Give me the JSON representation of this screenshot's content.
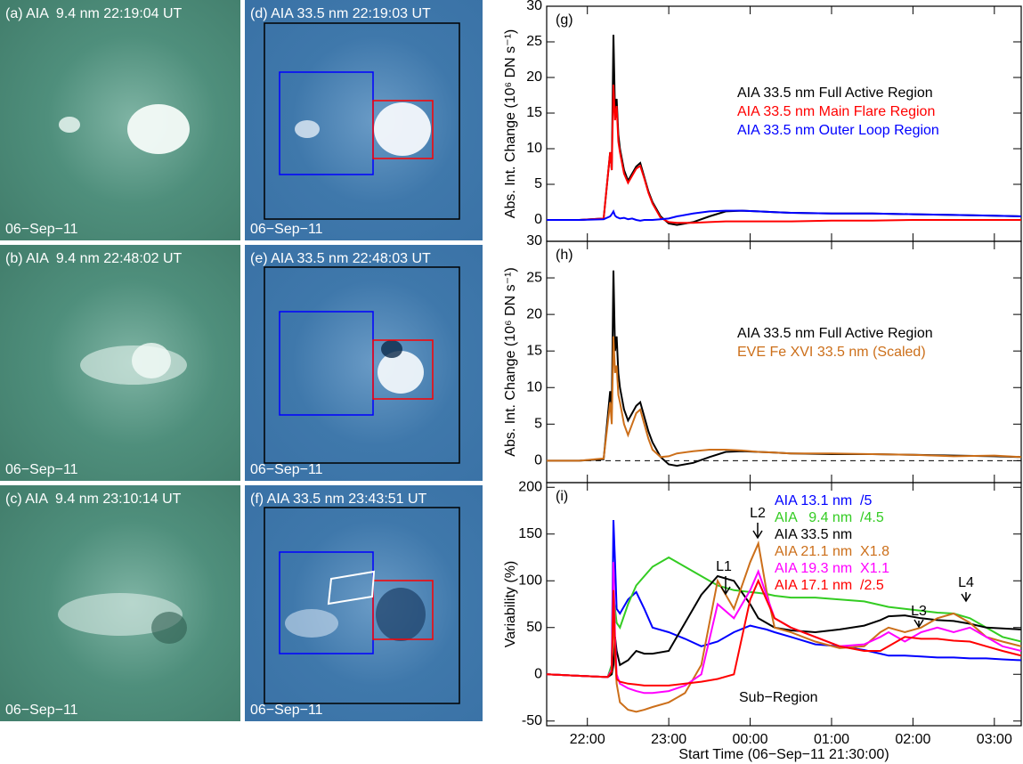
{
  "panels": [
    {
      "label": "(a) AIA  9.4 nm 22:19:04 UT",
      "date": "06−Sep−11"
    },
    {
      "label": "(d) AIA 33.5 nm 22:19:03 UT",
      "date": "06−Sep−11"
    },
    {
      "label": "(b) AIA  9.4 nm 22:48:02 UT",
      "date": "06−Sep−11"
    },
    {
      "label": "(e) AIA 33.5 nm 22:48:03 UT",
      "date": "06−Sep−11"
    },
    {
      "label": "(c) AIA  9.4 nm 23:10:14 UT",
      "date": "06−Sep−11"
    },
    {
      "label": "(f) AIA 33.5 nm 23:43:51 UT",
      "date": "06−Sep−11"
    }
  ],
  "chart_data": [
    {
      "type": "line",
      "panel_label": "(g)",
      "ylabel": "Abs. Int. Change (10⁶ DN s⁻¹)",
      "x": [
        0,
        0.4,
        0.7,
        0.78,
        0.8,
        0.82,
        0.84,
        0.86,
        0.88,
        0.9,
        0.95,
        1.0,
        1.05,
        1.1,
        1.15,
        1.2,
        1.25,
        1.3,
        1.4,
        1.5,
        1.6,
        1.8,
        2.0,
        2.2,
        2.4,
        2.6,
        2.8,
        3.0,
        3.5,
        4.0,
        4.5,
        5.0,
        5.5,
        5.83
      ],
      "xlim": [
        0,
        5.83
      ],
      "xticks": [
        {
          "value": 0.5,
          "label": "22:00"
        },
        {
          "value": 1.5,
          "label": "23:00"
        },
        {
          "value": 2.5,
          "label": "00:00"
        },
        {
          "value": 3.5,
          "label": "01:00"
        },
        {
          "value": 4.5,
          "label": "02:00"
        },
        {
          "value": 5.5,
          "label": "03:00"
        }
      ],
      "ylim": [
        -3,
        30
      ],
      "yticks": [
        0,
        5,
        10,
        15,
        20,
        25,
        30
      ],
      "series": [
        {
          "name": "AIA 33.5 nm Full Active Region",
          "color": "#000000",
          "values": [
            0,
            0,
            0.2,
            9.5,
            7,
            26,
            15,
            17,
            12,
            10,
            7,
            5.5,
            6.5,
            7.5,
            8,
            6,
            4,
            2.5,
            0.5,
            -0.5,
            -0.7,
            -0.3,
            0.5,
            1.2,
            1.3,
            1.2,
            1.1,
            1.0,
            0.9,
            0.9,
            0.8,
            0.7,
            0.6,
            0.5
          ]
        },
        {
          "name": "AIA 33.5 nm Main Flare Region",
          "color": "#ff0000",
          "values": [
            0,
            0,
            0.2,
            9.5,
            7,
            19,
            14,
            16,
            11,
            9.5,
            6.5,
            5.2,
            6.2,
            7.2,
            7.6,
            5.8,
            3.8,
            2.3,
            0.3,
            -0.3,
            -0.4,
            -0.4,
            -0.3,
            -0.2,
            -0.2,
            -0.2,
            -0.2,
            -0.2,
            -0.1,
            -0.1,
            0,
            0,
            0,
            0
          ]
        },
        {
          "name": "AIA 33.5 nm Outer Loop Region",
          "color": "#0000ff",
          "values": [
            0,
            0,
            0.1,
            0.5,
            0.8,
            1.2,
            0.6,
            0.4,
            0.3,
            0.2,
            0.3,
            0.1,
            0.2,
            0,
            -0.1,
            0,
            0,
            0,
            0.1,
            0.2,
            0.5,
            0.9,
            1.2,
            1.3,
            1.3,
            1.2,
            1.1,
            1.0,
            0.9,
            0.9,
            0.8,
            0.7,
            0.6,
            0.5
          ]
        }
      ]
    },
    {
      "type": "line",
      "panel_label": "(h)",
      "ylabel": "Abs. Int. Change (10⁶ DN s⁻¹)",
      "dashed_zero_line": true,
      "x": [
        0,
        0.4,
        0.7,
        0.78,
        0.8,
        0.82,
        0.84,
        0.86,
        0.88,
        0.9,
        0.95,
        1.0,
        1.05,
        1.1,
        1.15,
        1.2,
        1.25,
        1.3,
        1.4,
        1.5,
        1.6,
        1.8,
        2.0,
        2.2,
        2.4,
        2.6,
        2.8,
        3.0,
        3.5,
        4.0,
        4.5,
        5.0,
        5.5,
        5.83
      ],
      "xlim": [
        0,
        5.83
      ],
      "xticks": [
        {
          "value": 0.5,
          "label": "22:00"
        },
        {
          "value": 1.5,
          "label": "23:00"
        },
        {
          "value": 2.5,
          "label": "00:00"
        },
        {
          "value": 3.5,
          "label": "01:00"
        },
        {
          "value": 4.5,
          "label": "02:00"
        },
        {
          "value": 5.5,
          "label": "03:00"
        }
      ],
      "ylim": [
        -3,
        30
      ],
      "yticks": [
        0,
        5,
        10,
        15,
        20,
        25,
        30
      ],
      "series": [
        {
          "name": "AIA 33.5 nm Full Active Region",
          "color": "#000000",
          "values": [
            0,
            0,
            0.2,
            9.5,
            7,
            26,
            15,
            17,
            12,
            10,
            7,
            5.5,
            6.5,
            7.5,
            8,
            6,
            4,
            2.5,
            0.5,
            -0.5,
            -0.7,
            -0.3,
            0.5,
            1.2,
            1.3,
            1.2,
            1.1,
            1.0,
            0.9,
            0.9,
            0.8,
            0.7,
            0.6,
            0.5
          ]
        },
        {
          "name": "EVE Fe XVI 33.5 nm (Scaled)",
          "color": "#cc6f1a",
          "values": [
            0,
            0,
            0.3,
            8,
            5,
            17,
            12,
            13,
            9,
            8,
            5,
            3.5,
            5,
            6.5,
            7,
            5,
            3,
            1.5,
            0.5,
            0.6,
            1.0,
            1.3,
            1.5,
            1.5,
            1.4,
            1.2,
            1.1,
            1.0,
            1.0,
            0.9,
            0.8,
            0.6,
            0.7,
            0.5
          ]
        }
      ]
    },
    {
      "type": "line",
      "panel_label": "(i)",
      "ylabel": "Variability (%)",
      "xlabel": "Start Time (06−Sep−11 21:30:00)",
      "annotations": [
        "L1",
        "L2",
        "L3",
        "L4"
      ],
      "note": "Sub−Region",
      "x": [
        0,
        0.5,
        0.75,
        0.8,
        0.82,
        0.84,
        0.86,
        0.9,
        1.0,
        1.1,
        1.2,
        1.3,
        1.5,
        1.7,
        1.9,
        2.1,
        2.3,
        2.5,
        2.6,
        2.7,
        2.8,
        3.0,
        3.3,
        3.6,
        3.9,
        4.1,
        4.2,
        4.4,
        4.6,
        4.8,
        5.0,
        5.2,
        5.4,
        5.6,
        5.83
      ],
      "xlim": [
        0,
        5.83
      ],
      "xticks": [
        {
          "value": 0.5,
          "label": "22:00"
        },
        {
          "value": 1.5,
          "label": "23:00"
        },
        {
          "value": 2.5,
          "label": "00:00"
        },
        {
          "value": 3.5,
          "label": "01:00"
        },
        {
          "value": 4.5,
          "label": "02:00"
        },
        {
          "value": 5.5,
          "label": "03:00"
        }
      ],
      "ylim": [
        -55,
        205
      ],
      "yticks": [
        -50,
        0,
        50,
        100,
        150,
        200
      ],
      "series": [
        {
          "name": "AIA 13.1 nm  /5",
          "color": "#0000ff",
          "values": [
            0,
            -2,
            -3,
            10,
            165,
            120,
            70,
            65,
            80,
            88,
            70,
            50,
            45,
            38,
            30,
            35,
            45,
            52,
            50,
            48,
            45,
            40,
            32,
            30,
            26,
            22,
            20,
            20,
            19,
            18,
            18,
            17,
            17,
            16,
            15
          ]
        },
        {
          "name": "AIA   9.4 nm  /4.5",
          "color": "#33cc22",
          "values": [
            0,
            -2,
            -3,
            10,
            85,
            70,
            55,
            50,
            75,
            95,
            105,
            115,
            125,
            115,
            105,
            95,
            90,
            88,
            87,
            86,
            84,
            82,
            82,
            80,
            78,
            74,
            72,
            70,
            68,
            66,
            65,
            60,
            50,
            40,
            35
          ]
        },
        {
          "name": "AIA 33.5 nm",
          "color": "#000000",
          "values": [
            0,
            -2,
            -3,
            0,
            10,
            40,
            25,
            10,
            15,
            25,
            22,
            22,
            25,
            55,
            85,
            105,
            100,
            75,
            60,
            55,
            50,
            47,
            45,
            48,
            52,
            58,
            62,
            63,
            60,
            58,
            57,
            54,
            50,
            49,
            48
          ]
        },
        {
          "name": "AIA 21.1 nm  X1.8",
          "color": "#cc6f1a",
          "values": [
            0,
            -2,
            -3,
            5,
            70,
            20,
            -10,
            -30,
            -38,
            -40,
            -38,
            -35,
            -30,
            -20,
            10,
            100,
            70,
            120,
            140,
            90,
            50,
            45,
            35,
            28,
            30,
            45,
            50,
            45,
            50,
            60,
            65,
            55,
            40,
            35,
            30
          ]
        },
        {
          "name": "AIA 19.3 nm  X1.1",
          "color": "#ff00ff",
          "values": [
            0,
            -2,
            -3,
            5,
            120,
            40,
            0,
            -10,
            -15,
            -18,
            -20,
            -20,
            -18,
            -12,
            0,
            75,
            60,
            90,
            110,
            85,
            60,
            50,
            40,
            30,
            32,
            40,
            45,
            35,
            45,
            50,
            45,
            50,
            40,
            30,
            25
          ]
        },
        {
          "name": "AIA 17.1 nm  /2.5",
          "color": "#ff0000",
          "values": [
            0,
            -2,
            -3,
            3,
            90,
            30,
            -5,
            -8,
            -10,
            -11,
            -12,
            -12,
            -12,
            -10,
            -8,
            -5,
            0,
            80,
            100,
            80,
            60,
            50,
            40,
            30,
            25,
            25,
            30,
            40,
            38,
            38,
            36,
            35,
            30,
            25,
            20
          ]
        }
      ]
    }
  ]
}
